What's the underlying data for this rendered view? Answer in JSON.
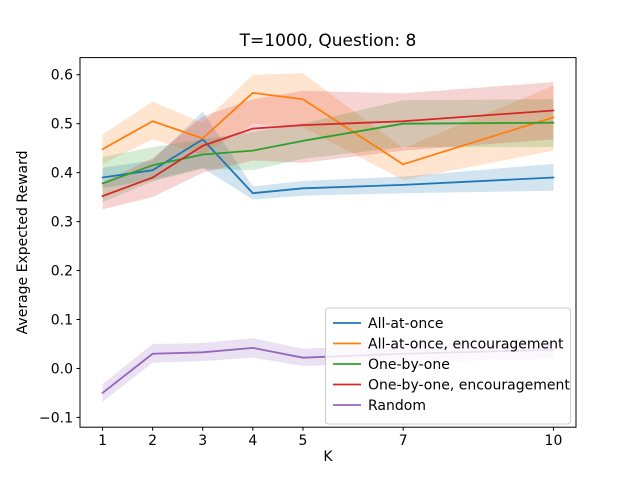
{
  "title": "T=1000, Question: 8",
  "chart_data": {
    "type": "line",
    "title": "T=1000, Question: 8",
    "xlabel": "K",
    "ylabel": "Average Expected Reward",
    "x": [
      1,
      2,
      3,
      4,
      5,
      7,
      10
    ],
    "xtick_labels": [
      "1",
      "2",
      "3",
      "4",
      "5",
      "7",
      "10"
    ],
    "yticks": [
      -0.1,
      0.0,
      0.1,
      0.2,
      0.3,
      0.4,
      0.5,
      0.6
    ],
    "ytick_labels": [
      "−0.1",
      "0.0",
      "0.1",
      "0.2",
      "0.3",
      "0.4",
      "0.5",
      "0.6"
    ],
    "xlim": [
      0.55,
      10.45
    ],
    "ylim": [
      -0.12,
      0.635
    ],
    "grid": false,
    "legend_position": "lower right",
    "band_alpha": 0.2,
    "axes_color": "#000000",
    "legend_edge_color": "#cccccc",
    "series": [
      {
        "name": "All-at-once",
        "color": "#1f77b4",
        "values": [
          0.39,
          0.405,
          0.468,
          0.358,
          0.368,
          0.375,
          0.39
        ],
        "band_lower": [
          0.368,
          0.385,
          0.41,
          0.345,
          0.353,
          0.358,
          0.363
        ],
        "band_upper": [
          0.41,
          0.425,
          0.525,
          0.372,
          0.383,
          0.392,
          0.418
        ]
      },
      {
        "name": "All-at-once, encouragement",
        "color": "#ff7f0e",
        "values": [
          0.448,
          0.505,
          0.47,
          0.563,
          0.55,
          0.417,
          0.513
        ],
        "band_lower": [
          0.418,
          0.468,
          0.437,
          0.5,
          0.493,
          0.385,
          0.445
        ],
        "band_upper": [
          0.478,
          0.545,
          0.502,
          0.6,
          0.603,
          0.45,
          0.578
        ]
      },
      {
        "name": "One-by-one",
        "color": "#2ca02c",
        "values": [
          0.378,
          0.415,
          0.437,
          0.445,
          0.465,
          0.5,
          0.502
        ],
        "band_lower": [
          0.34,
          0.382,
          0.408,
          0.405,
          0.428,
          0.452,
          0.452
        ],
        "band_upper": [
          0.432,
          0.452,
          0.468,
          0.483,
          0.5,
          0.548,
          0.55
        ]
      },
      {
        "name": "One-by-one, encouragement",
        "color": "#d62728",
        "values": [
          0.352,
          0.39,
          0.455,
          0.49,
          0.497,
          0.505,
          0.527
        ],
        "band_lower": [
          0.325,
          0.35,
          0.4,
          0.425,
          0.42,
          0.445,
          0.468
        ],
        "band_upper": [
          0.38,
          0.43,
          0.515,
          0.55,
          0.567,
          0.562,
          0.585
        ]
      },
      {
        "name": "Random",
        "color": "#9467bd",
        "values": [
          -0.05,
          0.03,
          0.033,
          0.042,
          0.022,
          0.03,
          0.038
        ],
        "band_lower": [
          -0.068,
          0.012,
          0.015,
          0.022,
          0.005,
          0.012,
          0.02
        ],
        "band_upper": [
          -0.032,
          0.05,
          0.052,
          0.062,
          0.04,
          0.05,
          0.057
        ]
      }
    ]
  }
}
